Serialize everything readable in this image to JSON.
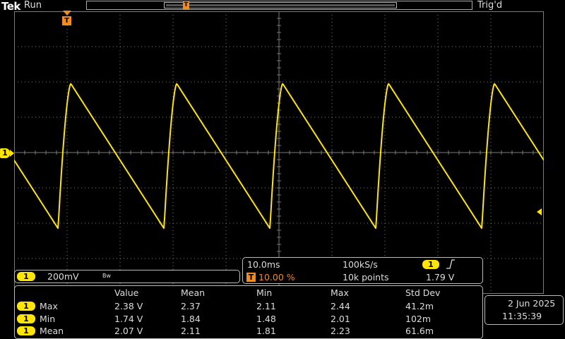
{
  "header": {
    "brand": "Tek",
    "acq_state": "Run",
    "trigger_status": "Trig'd",
    "record_trigger_label": "T"
  },
  "display": {
    "trigger_position_label": "T",
    "channel_marker_label": "1"
  },
  "colors": {
    "channel1": "#ffe600",
    "trigger": "#f28c1e",
    "graticule": "#7a7a7a"
  },
  "waveform": {
    "channel": "1",
    "shape": "sawtooth",
    "volts_per_div": 0.2,
    "time_per_div_ms": 10.0,
    "period_ms": 20.0,
    "center_offset_V": 2.07,
    "note_peak_V": 2.38,
    "note_trough_V": 1.74
  },
  "channel_readout": {
    "badge": "1",
    "scale": "200mV",
    "bw_icon": "Bw"
  },
  "timebase": {
    "time_div": "10.0ms",
    "sample_rate": "100kS/s",
    "trigger_badge": "T",
    "trigger_pos": "10.00 %",
    "record_length": "10k points",
    "trigger_source_badge": "1",
    "slope_icon": "rising-edge-icon",
    "trigger_level": "1.79 V"
  },
  "measurements": {
    "headers": [
      "Value",
      "Mean",
      "Min",
      "Max",
      "Std Dev"
    ],
    "rows": [
      {
        "channel": "1",
        "name": "Max",
        "value": "2.38 V",
        "mean": "2.37",
        "min": "2.11",
        "max": "2.44",
        "std": "41.2m"
      },
      {
        "channel": "1",
        "name": "Min",
        "value": "1.74 V",
        "mean": "1.84",
        "min": "1.48",
        "max": "2.01",
        "std": "102m"
      },
      {
        "channel": "1",
        "name": "Mean",
        "value": "2.07 V",
        "mean": "2.11",
        "min": "1.81",
        "max": "2.23",
        "std": "61.6m"
      }
    ]
  },
  "datetime": {
    "date": "2 Jun  2025",
    "time": "11:35:39"
  }
}
